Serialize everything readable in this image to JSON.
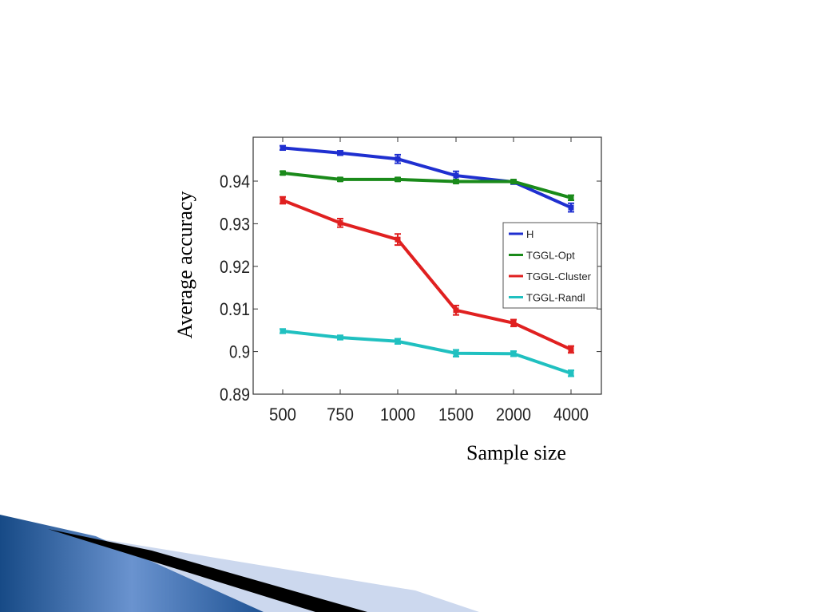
{
  "chart_data": {
    "type": "line",
    "xlabel": "Sample size",
    "ylabel": "Average accuracy",
    "categories": [
      "500",
      "750",
      "1000",
      "1500",
      "2000",
      "4000"
    ],
    "ylim": [
      0.89,
      0.95
    ],
    "yticks": [
      "0.89",
      "0.9",
      "0.91",
      "0.92",
      "0.93",
      "0.94"
    ],
    "yticks_values": [
      0.89,
      0.9,
      0.91,
      0.92,
      0.93,
      0.94
    ],
    "grid": false,
    "legend_position": "right",
    "series": [
      {
        "name": "H",
        "color": "#1f2fd0",
        "values": [
          0.9478,
          0.9466,
          0.9452,
          0.9413,
          0.9398,
          0.9338
        ],
        "errors": [
          0.0005,
          0.0005,
          0.001,
          0.001,
          0.0005,
          0.001
        ]
      },
      {
        "name": "TGGL-Opt",
        "color": "#1a8a1a",
        "values": [
          0.9419,
          0.9404,
          0.9404,
          0.9399,
          0.9399,
          0.9361
        ],
        "errors": [
          0.0004,
          0.0004,
          0.0004,
          0.0004,
          0.0004,
          0.0006
        ]
      },
      {
        "name": "TGGL-Cluster",
        "color": "#e02020",
        "values": [
          0.9355,
          0.9302,
          0.9263,
          0.9097,
          0.9067,
          0.9005
        ],
        "errors": [
          0.0008,
          0.001,
          0.0013,
          0.0011,
          0.0008,
          0.0008
        ]
      },
      {
        "name": "TGGL-Randl",
        "color": "#20c0c0",
        "values": [
          0.9048,
          0.9033,
          0.9024,
          0.8996,
          0.8995,
          0.8949
        ],
        "errors": [
          0.0005,
          0.0005,
          0.0006,
          0.0008,
          0.0006,
          0.0007
        ]
      }
    ]
  },
  "decor": {
    "slide_colors": [
      "#1a4f8a",
      "#5b86c4",
      "#000000",
      "#c6d3ea"
    ]
  }
}
